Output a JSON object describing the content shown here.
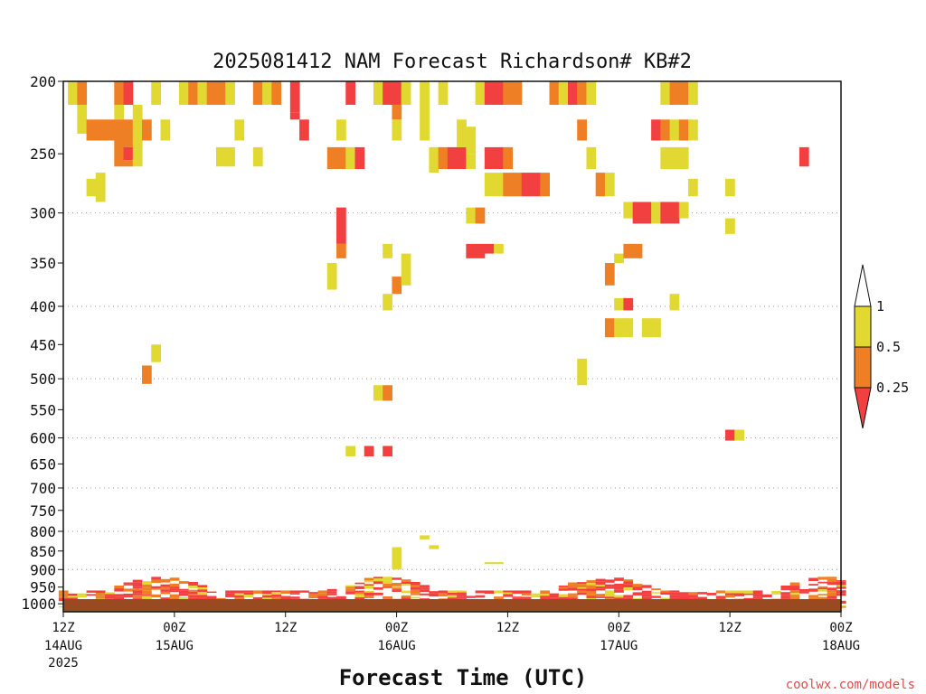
{
  "chart_data": {
    "type": "heatmap",
    "title": "2025081412 NAM Forecast Richardson# KB#2",
    "xlabel": "Forecast Time (UTC)",
    "ylabel": "",
    "y_scale": "log",
    "y_inverted": true,
    "ylim": [
      1025,
      200
    ],
    "xlim": [
      "2025-08-14 12Z",
      "2025-08-18 00Z"
    ],
    "y_ticks": [
      "200",
      "250",
      "300",
      "350",
      "400",
      "450",
      "500",
      "550",
      "600",
      "650",
      "700",
      "750",
      "800",
      "850",
      "900",
      "950",
      "1000"
    ],
    "y_ticks_values": [
      200,
      250,
      300,
      350,
      400,
      450,
      500,
      550,
      600,
      650,
      700,
      750,
      800,
      850,
      900,
      950,
      1000
    ],
    "x_ticks": [
      {
        "t": "2025-08-14 12Z",
        "l1": "12Z",
        "l2": "14AUG",
        "l3": "2025"
      },
      {
        "t": "2025-08-15 00Z",
        "l1": "00Z",
        "l2": "15AUG",
        "l3": ""
      },
      {
        "t": "2025-08-15 12Z",
        "l1": "12Z",
        "l2": "",
        "l3": ""
      },
      {
        "t": "2025-08-16 00Z",
        "l1": "00Z",
        "l2": "16AUG",
        "l3": ""
      },
      {
        "t": "2025-08-16 12Z",
        "l1": "12Z",
        "l2": "",
        "l3": ""
      },
      {
        "t": "2025-08-17 00Z",
        "l1": "00Z",
        "l2": "17AUG",
        "l3": ""
      },
      {
        "t": "2025-08-17 12Z",
        "l1": "12Z",
        "l2": "",
        "l3": ""
      },
      {
        "t": "2025-08-18 00Z",
        "l1": "00Z",
        "l2": "18AUG",
        "l3": ""
      }
    ],
    "grid": "dotted horizontal lines at pressure levels",
    "colorbar": {
      "ticks": [
        "1",
        "0.5",
        "0.25"
      ],
      "bins": [
        {
          "range": "< 0.25",
          "color": "#f24040"
        },
        {
          "range": "0.25 - 0.5",
          "color": "#ef7f24"
        },
        {
          "range": "0.5 - 1",
          "color": "#e2d832"
        },
        {
          "range": "> 1",
          "color": "#ffffff"
        }
      ]
    },
    "colors": {
      "lt025": "#f24040",
      "b025_05": "#ef7f24",
      "b05_1": "#e2d832",
      "ground": "#9a4a20"
    },
    "surface_pressure": 1025,
    "cells": [
      {
        "t": "2025-08-14 13Z",
        "p0": 200,
        "p1": 215,
        "bin": "b05_1"
      },
      {
        "t": "2025-08-14 14Z",
        "p0": 200,
        "p1": 215,
        "bin": "b025_05"
      },
      {
        "t": "2025-08-14 14Z",
        "p0": 215,
        "p1": 235,
        "bin": "b05_1"
      },
      {
        "t": "2025-08-14 15Z",
        "p0": 225,
        "p1": 240,
        "bin": "b025_05"
      },
      {
        "t": "2025-08-14 16Z",
        "p0": 225,
        "p1": 240,
        "bin": "b025_05"
      },
      {
        "t": "2025-08-14 17Z",
        "p0": 225,
        "p1": 240,
        "bin": "b025_05"
      },
      {
        "t": "2025-08-14 15Z",
        "p0": 270,
        "p1": 285,
        "bin": "b05_1"
      },
      {
        "t": "2025-08-14 16Z",
        "p0": 265,
        "p1": 290,
        "bin": "b05_1"
      },
      {
        "t": "2025-08-14 18Z",
        "p0": 200,
        "p1": 215,
        "bin": "b025_05"
      },
      {
        "t": "2025-08-14 19Z",
        "p0": 200,
        "p1": 215,
        "bin": "lt025"
      },
      {
        "t": "2025-08-14 18Z",
        "p0": 215,
        "p1": 225,
        "bin": "b05_1"
      },
      {
        "t": "2025-08-14 18Z",
        "p0": 225,
        "p1": 260,
        "bin": "b025_05"
      },
      {
        "t": "2025-08-14 19Z",
        "p0": 225,
        "p1": 245,
        "bin": "b025_05"
      },
      {
        "t": "2025-08-14 19Z",
        "p0": 245,
        "p1": 255,
        "bin": "lt025"
      },
      {
        "t": "2025-08-14 19Z",
        "p0": 255,
        "p1": 260,
        "bin": "b025_05"
      },
      {
        "t": "2025-08-14 20Z",
        "p0": 215,
        "p1": 260,
        "bin": "b05_1"
      },
      {
        "t": "2025-08-14 21Z",
        "p0": 225,
        "p1": 240,
        "bin": "b025_05"
      },
      {
        "t": "2025-08-14 22Z",
        "p0": 200,
        "p1": 215,
        "bin": "b05_1"
      },
      {
        "t": "2025-08-14 23Z",
        "p0": 225,
        "p1": 240,
        "bin": "b05_1"
      },
      {
        "t": "2025-08-15 01Z",
        "p0": 200,
        "p1": 215,
        "bin": "b05_1"
      },
      {
        "t": "2025-08-15 02Z",
        "p0": 200,
        "p1": 215,
        "bin": "b025_05"
      },
      {
        "t": "2025-08-15 03Z",
        "p0": 200,
        "p1": 215,
        "bin": "b05_1"
      },
      {
        "t": "2025-08-15 04Z",
        "p0": 200,
        "p1": 215,
        "bin": "b025_05"
      },
      {
        "t": "2025-08-15 05Z",
        "p0": 200,
        "p1": 215,
        "bin": "b025_05"
      },
      {
        "t": "2025-08-15 06Z",
        "p0": 200,
        "p1": 215,
        "bin": "b05_1"
      },
      {
        "t": "2025-08-15 05Z",
        "p0": 245,
        "p1": 260,
        "bin": "b05_1"
      },
      {
        "t": "2025-08-15 06Z",
        "p0": 245,
        "p1": 260,
        "bin": "b05_1"
      },
      {
        "t": "2025-08-15 07Z",
        "p0": 225,
        "p1": 240,
        "bin": "b05_1"
      },
      {
        "t": "2025-08-15 09Z",
        "p0": 200,
        "p1": 215,
        "bin": "b025_05"
      },
      {
        "t": "2025-08-15 09Z",
        "p0": 245,
        "p1": 260,
        "bin": "b05_1"
      },
      {
        "t": "2025-08-15 10Z",
        "p0": 200,
        "p1": 215,
        "bin": "b05_1"
      },
      {
        "t": "2025-08-15 11Z",
        "p0": 200,
        "p1": 215,
        "bin": "b025_05"
      },
      {
        "t": "2025-08-15 13Z",
        "p0": 200,
        "p1": 220,
        "bin": "lt025"
      },
      {
        "t": "2025-08-15 13Z",
        "p0": 220,
        "p1": 225,
        "bin": "lt025"
      },
      {
        "t": "2025-08-15 14Z",
        "p0": 225,
        "p1": 240,
        "bin": "lt025"
      },
      {
        "t": "2025-08-15 17Z",
        "p0": 245,
        "p1": 262,
        "bin": "b025_05"
      },
      {
        "t": "2025-08-15 18Z",
        "p0": 245,
        "p1": 262,
        "bin": "b025_05"
      },
      {
        "t": "2025-08-15 19Z",
        "p0": 245,
        "p1": 262,
        "bin": "b05_1"
      },
      {
        "t": "2025-08-15 20Z",
        "p0": 245,
        "p1": 262,
        "bin": "lt025"
      },
      {
        "t": "2025-08-15 18Z",
        "p0": 225,
        "p1": 240,
        "bin": "b05_1"
      },
      {
        "t": "2025-08-15 19Z",
        "p0": 200,
        "p1": 215,
        "bin": "lt025"
      },
      {
        "t": "2025-08-15 18Z",
        "p0": 295,
        "p1": 330,
        "bin": "lt025"
      },
      {
        "t": "2025-08-15 18Z",
        "p0": 330,
        "p1": 345,
        "bin": "b025_05"
      },
      {
        "t": "2025-08-15 17Z",
        "p0": 350,
        "p1": 380,
        "bin": "b05_1"
      },
      {
        "t": "2025-08-15 22Z",
        "p0": 200,
        "p1": 215,
        "bin": "b05_1"
      },
      {
        "t": "2025-08-15 23Z",
        "p0": 200,
        "p1": 215,
        "bin": "lt025"
      },
      {
        "t": "2025-08-16 00Z",
        "p0": 200,
        "p1": 215,
        "bin": "lt025"
      },
      {
        "t": "2025-08-16 01Z",
        "p0": 200,
        "p1": 215,
        "bin": "b05_1"
      },
      {
        "t": "2025-08-16 00Z",
        "p0": 225,
        "p1": 240,
        "bin": "b05_1"
      },
      {
        "t": "2025-08-16 00Z",
        "p0": 215,
        "p1": 225,
        "bin": "b025_05"
      },
      {
        "t": "2025-08-15 23Z",
        "p0": 330,
        "p1": 345,
        "bin": "b05_1"
      },
      {
        "t": "2025-08-15 23Z",
        "p0": 385,
        "p1": 405,
        "bin": "b05_1"
      },
      {
        "t": "2025-08-16 00Z",
        "p0": 365,
        "p1": 385,
        "bin": "b025_05"
      },
      {
        "t": "2025-08-16 01Z",
        "p0": 340,
        "p1": 375,
        "bin": "b05_1"
      },
      {
        "t": "2025-08-16 03Z",
        "p0": 200,
        "p1": 240,
        "bin": "b05_1"
      },
      {
        "t": "2025-08-16 04Z",
        "p0": 245,
        "p1": 265,
        "bin": "b05_1"
      },
      {
        "t": "2025-08-16 05Z",
        "p0": 200,
        "p1": 215,
        "bin": "b05_1"
      },
      {
        "t": "2025-08-16 05Z",
        "p0": 245,
        "p1": 262,
        "bin": "b025_05"
      },
      {
        "t": "2025-08-16 06Z",
        "p0": 245,
        "p1": 262,
        "bin": "lt025"
      },
      {
        "t": "2025-08-16 07Z",
        "p0": 245,
        "p1": 262,
        "bin": "lt025"
      },
      {
        "t": "2025-08-16 07Z",
        "p0": 225,
        "p1": 245,
        "bin": "b05_1"
      },
      {
        "t": "2025-08-16 08Z",
        "p0": 230,
        "p1": 250,
        "bin": "b05_1"
      },
      {
        "t": "2025-08-16 08Z",
        "p0": 250,
        "p1": 262,
        "bin": "b05_1"
      },
      {
        "t": "2025-08-16 09Z",
        "p0": 200,
        "p1": 215,
        "bin": "b05_1"
      },
      {
        "t": "2025-08-16 10Z",
        "p0": 200,
        "p1": 215,
        "bin": "lt025"
      },
      {
        "t": "2025-08-16 11Z",
        "p0": 200,
        "p1": 215,
        "bin": "lt025"
      },
      {
        "t": "2025-08-16 12Z",
        "p0": 200,
        "p1": 215,
        "bin": "b025_05"
      },
      {
        "t": "2025-08-16 13Z",
        "p0": 200,
        "p1": 215,
        "bin": "b025_05"
      },
      {
        "t": "2025-08-16 10Z",
        "p0": 245,
        "p1": 262,
        "bin": "lt025"
      },
      {
        "t": "2025-08-16 11Z",
        "p0": 245,
        "p1": 262,
        "bin": "lt025"
      },
      {
        "t": "2025-08-16 12Z",
        "p0": 245,
        "p1": 262,
        "bin": "b025_05"
      },
      {
        "t": "2025-08-16 10Z",
        "p0": 265,
        "p1": 285,
        "bin": "b05_1"
      },
      {
        "t": "2025-08-16 11Z",
        "p0": 265,
        "p1": 285,
        "bin": "b05_1"
      },
      {
        "t": "2025-08-16 12Z",
        "p0": 265,
        "p1": 285,
        "bin": "b025_05"
      },
      {
        "t": "2025-08-16 13Z",
        "p0": 265,
        "p1": 285,
        "bin": "b025_05"
      },
      {
        "t": "2025-08-16 14Z",
        "p0": 265,
        "p1": 285,
        "bin": "lt025"
      },
      {
        "t": "2025-08-16 15Z",
        "p0": 265,
        "p1": 285,
        "bin": "lt025"
      },
      {
        "t": "2025-08-16 16Z",
        "p0": 265,
        "p1": 285,
        "bin": "b025_05"
      },
      {
        "t": "2025-08-16 08Z",
        "p0": 295,
        "p1": 310,
        "bin": "b05_1"
      },
      {
        "t": "2025-08-16 09Z",
        "p0": 295,
        "p1": 310,
        "bin": "b025_05"
      },
      {
        "t": "2025-08-16 08Z",
        "p0": 330,
        "p1": 345,
        "bin": "lt025"
      },
      {
        "t": "2025-08-16 09Z",
        "p0": 330,
        "p1": 345,
        "bin": "lt025"
      },
      {
        "t": "2025-08-16 10Z",
        "p0": 330,
        "p1": 340,
        "bin": "lt025"
      },
      {
        "t": "2025-08-16 11Z",
        "p0": 330,
        "p1": 340,
        "bin": "b05_1"
      },
      {
        "t": "2025-08-16 10Z",
        "p0": 880,
        "p1": 885,
        "bin": "b05_1"
      },
      {
        "t": "2025-08-16 11Z",
        "p0": 880,
        "p1": 885,
        "bin": "b05_1"
      },
      {
        "t": "2025-08-16 04Z",
        "p0": 835,
        "p1": 845,
        "bin": "b05_1"
      },
      {
        "t": "2025-08-16 03Z",
        "p0": 810,
        "p1": 820,
        "bin": "b05_1"
      },
      {
        "t": "2025-08-16 17Z",
        "p0": 200,
        "p1": 215,
        "bin": "b025_05"
      },
      {
        "t": "2025-08-16 18Z",
        "p0": 200,
        "p1": 215,
        "bin": "b05_1"
      },
      {
        "t": "2025-08-16 19Z",
        "p0": 200,
        "p1": 215,
        "bin": "lt025"
      },
      {
        "t": "2025-08-16 20Z",
        "p0": 200,
        "p1": 215,
        "bin": "b025_05"
      },
      {
        "t": "2025-08-16 21Z",
        "p0": 200,
        "p1": 215,
        "bin": "b05_1"
      },
      {
        "t": "2025-08-16 20Z",
        "p0": 225,
        "p1": 240,
        "bin": "b025_05"
      },
      {
        "t": "2025-08-16 21Z",
        "p0": 245,
        "p1": 262,
        "bin": "b05_1"
      },
      {
        "t": "2025-08-16 22Z",
        "p0": 265,
        "p1": 285,
        "bin": "b025_05"
      },
      {
        "t": "2025-08-16 23Z",
        "p0": 265,
        "p1": 285,
        "bin": "b05_1"
      },
      {
        "t": "2025-08-16 20Z",
        "p0": 470,
        "p1": 510,
        "bin": "b05_1"
      },
      {
        "t": "2025-08-16 23Z",
        "p0": 350,
        "p1": 375,
        "bin": "b025_05"
      },
      {
        "t": "2025-08-17 00Z",
        "p0": 340,
        "p1": 350,
        "bin": "b05_1"
      },
      {
        "t": "2025-08-17 01Z",
        "p0": 330,
        "p1": 345,
        "bin": "b025_05"
      },
      {
        "t": "2025-08-17 02Z",
        "p0": 330,
        "p1": 345,
        "bin": "b025_05"
      },
      {
        "t": "2025-08-17 00Z",
        "p0": 390,
        "p1": 405,
        "bin": "b05_1"
      },
      {
        "t": "2025-08-17 01Z",
        "p0": 390,
        "p1": 405,
        "bin": "lt025"
      },
      {
        "t": "2025-08-16 23Z",
        "p0": 415,
        "p1": 440,
        "bin": "b025_05"
      },
      {
        "t": "2025-08-17 00Z",
        "p0": 415,
        "p1": 440,
        "bin": "b05_1"
      },
      {
        "t": "2025-08-17 01Z",
        "p0": 415,
        "p1": 440,
        "bin": "b05_1"
      },
      {
        "t": "2025-08-17 03Z",
        "p0": 415,
        "p1": 440,
        "bin": "b05_1"
      },
      {
        "t": "2025-08-17 04Z",
        "p0": 415,
        "p1": 440,
        "bin": "b05_1"
      },
      {
        "t": "2025-08-17 01Z",
        "p0": 290,
        "p1": 305,
        "bin": "b05_1"
      },
      {
        "t": "2025-08-17 02Z",
        "p0": 290,
        "p1": 310,
        "bin": "lt025"
      },
      {
        "t": "2025-08-17 03Z",
        "p0": 290,
        "p1": 310,
        "bin": "lt025"
      },
      {
        "t": "2025-08-17 04Z",
        "p0": 290,
        "p1": 310,
        "bin": "b05_1"
      },
      {
        "t": "2025-08-17 05Z",
        "p0": 290,
        "p1": 310,
        "bin": "lt025"
      },
      {
        "t": "2025-08-17 06Z",
        "p0": 290,
        "p1": 310,
        "bin": "lt025"
      },
      {
        "t": "2025-08-17 07Z",
        "p0": 290,
        "p1": 305,
        "bin": "b05_1"
      },
      {
        "t": "2025-08-17 05Z",
        "p0": 200,
        "p1": 215,
        "bin": "b05_1"
      },
      {
        "t": "2025-08-17 06Z",
        "p0": 200,
        "p1": 215,
        "bin": "b025_05"
      },
      {
        "t": "2025-08-17 07Z",
        "p0": 200,
        "p1": 215,
        "bin": "b025_05"
      },
      {
        "t": "2025-08-17 08Z",
        "p0": 200,
        "p1": 215,
        "bin": "b05_1"
      },
      {
        "t": "2025-08-17 04Z",
        "p0": 225,
        "p1": 240,
        "bin": "lt025"
      },
      {
        "t": "2025-08-17 05Z",
        "p0": 225,
        "p1": 240,
        "bin": "b025_05"
      },
      {
        "t": "2025-08-17 06Z",
        "p0": 225,
        "p1": 240,
        "bin": "b05_1"
      },
      {
        "t": "2025-08-17 07Z",
        "p0": 225,
        "p1": 240,
        "bin": "b025_05"
      },
      {
        "t": "2025-08-17 08Z",
        "p0": 225,
        "p1": 240,
        "bin": "b05_1"
      },
      {
        "t": "2025-08-17 05Z",
        "p0": 245,
        "p1": 262,
        "bin": "b05_1"
      },
      {
        "t": "2025-08-17 06Z",
        "p0": 245,
        "p1": 262,
        "bin": "b05_1"
      },
      {
        "t": "2025-08-17 07Z",
        "p0": 245,
        "p1": 262,
        "bin": "b05_1"
      },
      {
        "t": "2025-08-17 08Z",
        "p0": 270,
        "p1": 285,
        "bin": "b05_1"
      },
      {
        "t": "2025-08-17 06Z",
        "p0": 385,
        "p1": 405,
        "bin": "b05_1"
      },
      {
        "t": "2025-08-17 12Z",
        "p0": 270,
        "p1": 285,
        "bin": "b05_1"
      },
      {
        "t": "2025-08-17 12Z",
        "p0": 305,
        "p1": 320,
        "bin": "b05_1"
      },
      {
        "t": "2025-08-17 12Z",
        "p0": 585,
        "p1": 605,
        "bin": "lt025"
      },
      {
        "t": "2025-08-17 13Z",
        "p0": 585,
        "p1": 605,
        "bin": "b05_1"
      },
      {
        "t": "2025-08-17 20Z",
        "p0": 245,
        "p1": 260,
        "bin": "lt025"
      },
      {
        "t": "2025-08-14 22Z",
        "p0": 450,
        "p1": 475,
        "bin": "b05_1"
      },
      {
        "t": "2025-08-14 21Z",
        "p0": 480,
        "p1": 508,
        "bin": "b025_05"
      },
      {
        "t": "2025-08-15 22Z",
        "p0": 510,
        "p1": 535,
        "bin": "b05_1"
      },
      {
        "t": "2025-08-15 23Z",
        "p0": 510,
        "p1": 535,
        "bin": "b025_05"
      },
      {
        "t": "2025-08-15 19Z",
        "p0": 615,
        "p1": 635,
        "bin": "b05_1"
      },
      {
        "t": "2025-08-15 21Z",
        "p0": 615,
        "p1": 635,
        "bin": "lt025"
      },
      {
        "t": "2025-08-15 23Z",
        "p0": 615,
        "p1": 635,
        "bin": "lt025"
      },
      {
        "t": "2025-08-16 00Z",
        "p0": 840,
        "p1": 900,
        "bin": "b05_1"
      }
    ],
    "boundary_layer": {
      "p_top": 900,
      "p_bottom": 1000,
      "pattern": "dense mixture of all three bins near surface"
    }
  },
  "credit": "coolwx.com/models"
}
